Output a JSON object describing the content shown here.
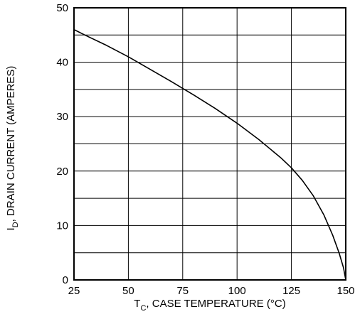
{
  "chart_data": {
    "type": "line",
    "xlim": [
      25,
      150
    ],
    "ylim": [
      0,
      50
    ],
    "x_ticks": [
      25,
      50,
      75,
      100,
      125,
      150
    ],
    "y_ticks": [
      0,
      10,
      20,
      30,
      40,
      50
    ],
    "x_minor_grid": [],
    "y_minor_grid": [
      5,
      15,
      25,
      35,
      45
    ],
    "grid": true,
    "xlabel": {
      "prefix": "T",
      "subscript": "C",
      "suffix": ", CASE TEMPERATURE (°C)"
    },
    "ylabel": {
      "prefix": "I",
      "subscript": "D",
      "suffix": ", DRAIN CURRENT (AMPERES)"
    },
    "series": [
      {
        "x": [
          25,
          30,
          40,
          50,
          60,
          70,
          75,
          80,
          90,
          100,
          110,
          120,
          125,
          130,
          135,
          140,
          144,
          147,
          149,
          150
        ],
        "y": [
          46.0,
          45.0,
          43.1,
          41.0,
          38.7,
          36.4,
          35.2,
          34.0,
          31.5,
          28.8,
          25.8,
          22.5,
          20.6,
          18.3,
          15.5,
          11.9,
          8.2,
          4.9,
          2.2,
          0
        ]
      }
    ],
    "colors": {
      "line": "#000000",
      "grid": "#000000",
      "frame": "#000000"
    }
  }
}
